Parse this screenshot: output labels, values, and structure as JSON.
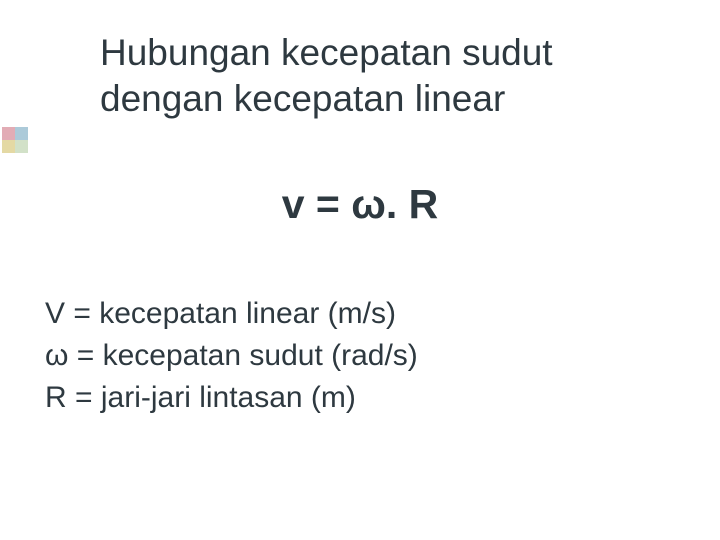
{
  "colors": {
    "background": "#ffffff",
    "text": "#2e3940",
    "accent_tl": "rgba(190, 70, 90, 0.45)",
    "accent_tr": "rgba(90, 150, 180, 0.5)",
    "accent_bl": "rgba(205, 185, 90, 0.55)",
    "accent_br": "rgba(165, 195, 145, 0.5)"
  },
  "typography": {
    "title_fontsize": 37,
    "formula_fontsize": 41,
    "body_fontsize": 30,
    "font_family": "Verdana"
  },
  "title": {
    "line1": "Hubungan kecepatan sudut",
    "line2": "dengan kecepatan linear"
  },
  "formula": "v = ω. R",
  "definitions": [
    "V = kecepatan linear (m/s)",
    "ω = kecepatan sudut (rad/s)",
    "R = jari-jari lintasan (m)"
  ]
}
